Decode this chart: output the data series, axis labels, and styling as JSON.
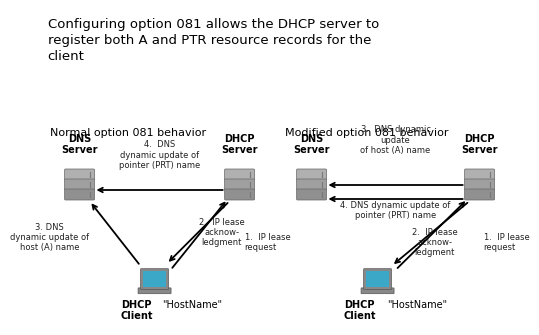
{
  "title": "Configuring option 081 allows the DHCP server to\nregister both A and PTR resource records for the\nclient",
  "title_fontsize": 9.5,
  "subtitle_left": "Normal option 081 behavior",
  "subtitle_right": "Modified option 081 behavior",
  "subtitle_fontsize": 8,
  "bg_color": "#ffffff",
  "text_color": "#000000",
  "label_color": "#222222",
  "left": {
    "dns_label": "DNS\nServer",
    "dhcp_label": "DHCP\nServer",
    "client_label": "DHCP\nClient",
    "hostname_label": "\"HostName\"",
    "arrow_top_label": "4.  DNS\ndynamic update of\npointer (PRT) name",
    "arrow_ack_label": "2.  IP lease\nacknow-\nledgment",
    "arrow_dns_label": "3. DNS\ndynamic update of\nhost (A) name",
    "arrow_req_label": "1.  IP lease\nrequest"
  },
  "right": {
    "dns_label": "DNS\nServer",
    "dhcp_label": "DHCP\nServer",
    "client_label": "DHCP\nClient",
    "hostname_label": "\"HostName\"",
    "arrow_top_label": "3.  DNS dynamic\nupdate\nof host (A) name",
    "arrow_ptr_label": "4. DNS dynamic update of\npointer (PRT) name",
    "arrow_ack_label": "2.  IP lease\nacknow-\nledgment",
    "arrow_req_label": "1.  IP lease\nrequest"
  }
}
